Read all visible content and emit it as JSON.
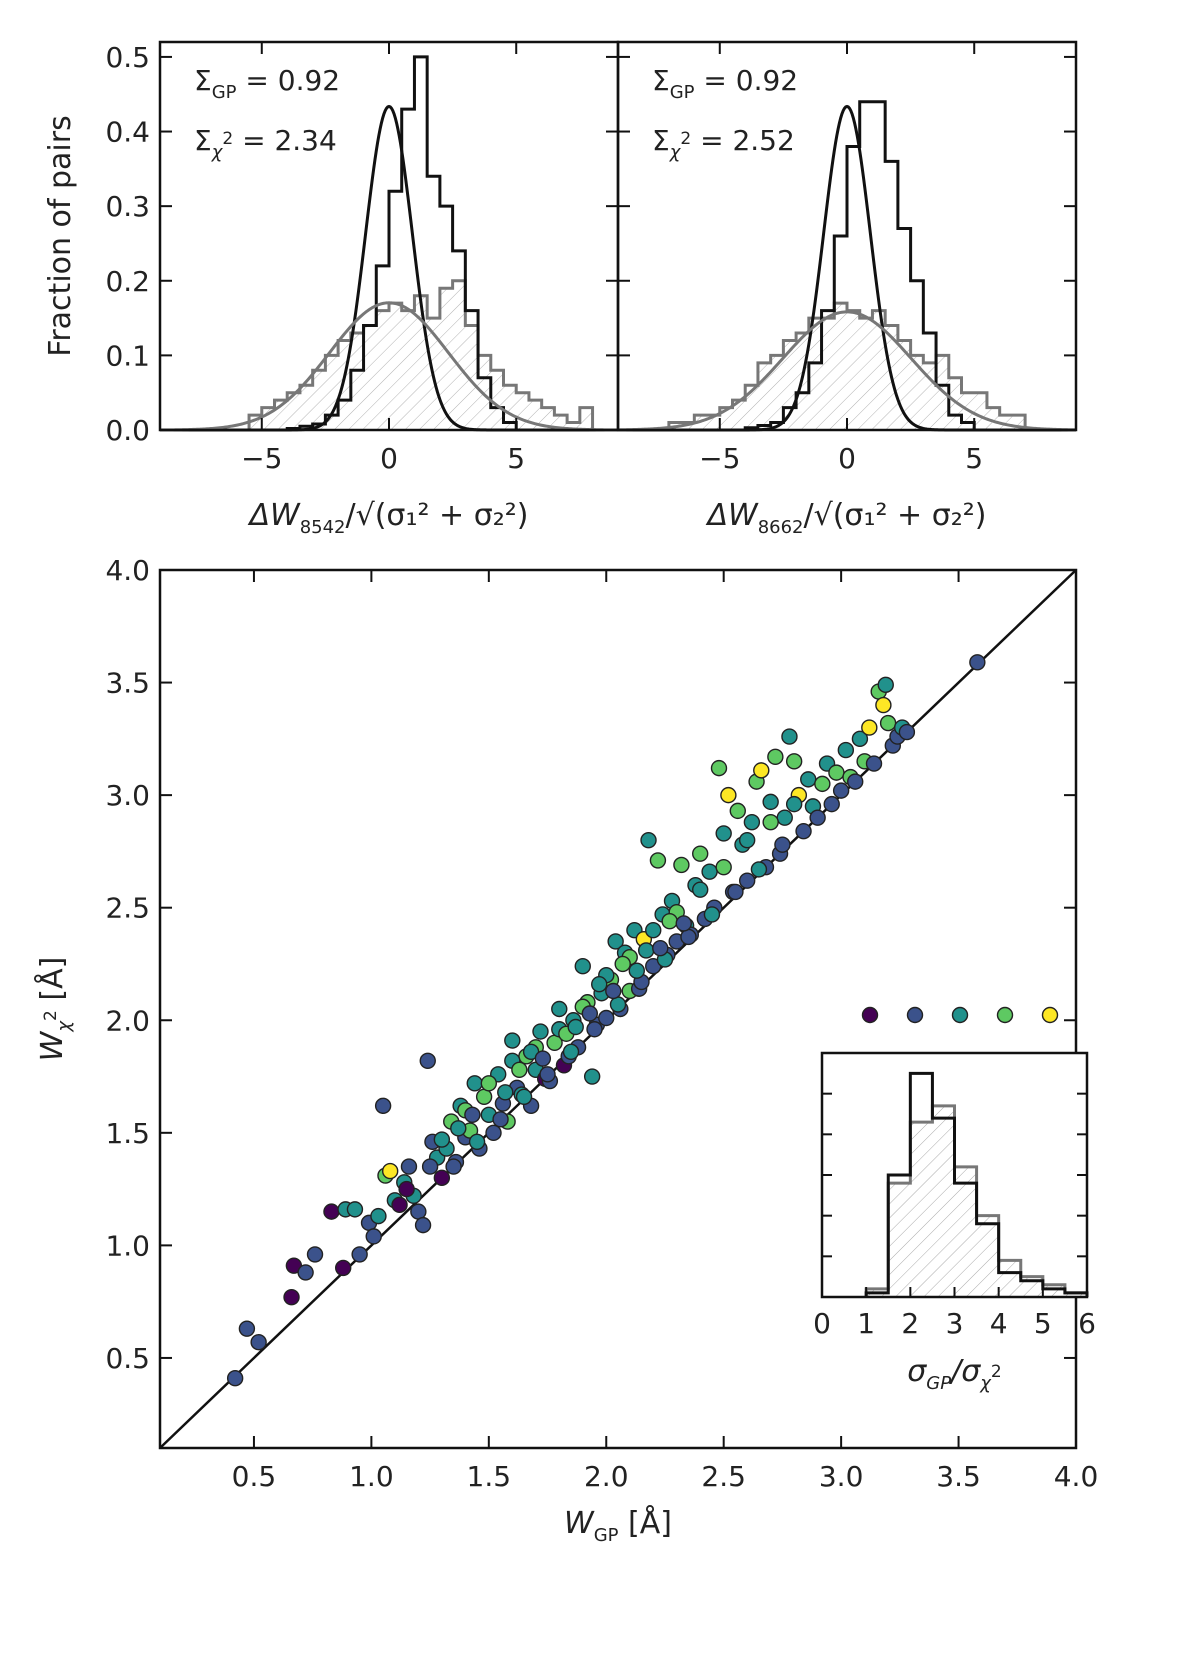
{
  "chart_data": [
    {
      "type": "histogram",
      "panel": "top-left",
      "ylabel": "Fraction of pairs",
      "xlabel_main": "ΔW",
      "xlabel_sub": "8542",
      "xlabel_tail": "/√(σ₁² + σ₂²)",
      "xlim": [
        -9,
        9
      ],
      "ylim": [
        0,
        0.52
      ],
      "xticks": [
        "−5",
        "0",
        "5"
      ],
      "yticks": [
        "0.0",
        "0.1",
        "0.2",
        "0.3",
        "0.4",
        "0.5"
      ],
      "annotations": [
        {
          "sym": "Σ",
          "sub": "GP",
          "sup": "",
          "text": " = 0.92"
        },
        {
          "sym": "Σ",
          "sub": "χ",
          "sup": "2",
          "text": " = 2.34"
        }
      ],
      "bin_width": 0.5,
      "series": [
        {
          "name": "GP",
          "color": "#111111",
          "bin_start": -4.0,
          "sigma": 0.92,
          "values": [
            0.002,
            0.005,
            0.008,
            0.02,
            0.04,
            0.08,
            0.14,
            0.22,
            0.32,
            0.43,
            0.5,
            0.34,
            0.3,
            0.24,
            0.16,
            0.07,
            0.03,
            0.01
          ]
        },
        {
          "name": "χ²",
          "color": "#777777",
          "bin_start": -5.5,
          "sigma": 2.34,
          "values": [
            0.02,
            0.03,
            0.04,
            0.05,
            0.06,
            0.08,
            0.1,
            0.12,
            0.13,
            0.14,
            0.16,
            0.17,
            0.16,
            0.18,
            0.15,
            0.19,
            0.2,
            0.14,
            0.1,
            0.08,
            0.06,
            0.05,
            0.04,
            0.03,
            0.02,
            0.01,
            0.03
          ]
        }
      ]
    },
    {
      "type": "histogram",
      "panel": "top-right",
      "xlabel_main": "ΔW",
      "xlabel_sub": "8662",
      "xlabel_tail": "/√(σ₁² + σ₂²)",
      "xlim": [
        -9,
        9
      ],
      "ylim": [
        0,
        0.52
      ],
      "xticks": [
        "−5",
        "0",
        "5"
      ],
      "annotations": [
        {
          "sym": "Σ",
          "sub": "GP",
          "sup": "",
          "text": " = 0.92"
        },
        {
          "sym": "Σ",
          "sub": "χ",
          "sup": "2",
          "text": " = 2.52"
        }
      ],
      "bin_width": 0.5,
      "series": [
        {
          "name": "GP",
          "color": "#111111",
          "bin_start": -4.0,
          "sigma": 0.92,
          "values": [
            0.003,
            0.006,
            0.01,
            0.03,
            0.05,
            0.09,
            0.16,
            0.26,
            0.38,
            0.44,
            0.44,
            0.36,
            0.27,
            0.2,
            0.13,
            0.06,
            0.02,
            0.01
          ]
        },
        {
          "name": "χ²",
          "color": "#777777",
          "bin_start": -7.0,
          "sigma": 2.52,
          "values": [
            0.01,
            0.01,
            0.02,
            0.02,
            0.03,
            0.04,
            0.06,
            0.09,
            0.1,
            0.12,
            0.13,
            0.15,
            0.15,
            0.17,
            0.16,
            0.15,
            0.16,
            0.14,
            0.12,
            0.1,
            0.09,
            0.1,
            0.07,
            0.05,
            0.05,
            0.03,
            0.02,
            0.02
          ]
        }
      ]
    },
    {
      "type": "scatter",
      "panel": "bottom",
      "xlabel_main": "W",
      "xlabel_sub": "GP",
      "xlabel_tail": " [Å]",
      "ylabel_main": "W",
      "ylabel_sub": "χ",
      "ylabel_sup": "2",
      "ylabel_tail": " [Å]",
      "xlim": [
        0.1,
        4.0
      ],
      "ylim": [
        0.1,
        4.0
      ],
      "xticks": [
        "0.5",
        "1.0",
        "1.5",
        "2.0",
        "2.5",
        "3.0",
        "3.5",
        "4.0"
      ],
      "yticks": [
        "0.5",
        "1.0",
        "1.5",
        "2.0",
        "2.5",
        "3.0",
        "3.5",
        "4.0"
      ],
      "one_to_one_line": true,
      "colormap": [
        "#440154",
        "#3b528b",
        "#21918c",
        "#5ec962",
        "#fde725"
      ],
      "points": [
        [
          0.42,
          0.41,
          1
        ],
        [
          0.47,
          0.63,
          1
        ],
        [
          0.52,
          0.57,
          1
        ],
        [
          0.66,
          0.77,
          0
        ],
        [
          0.67,
          0.91,
          0
        ],
        [
          0.72,
          0.88,
          1
        ],
        [
          0.76,
          0.96,
          1
        ],
        [
          0.83,
          1.15,
          0
        ],
        [
          0.88,
          0.9,
          0
        ],
        [
          0.89,
          1.16,
          2
        ],
        [
          0.93,
          1.16,
          2
        ],
        [
          0.95,
          0.96,
          1
        ],
        [
          0.99,
          1.1,
          1
        ],
        [
          1.01,
          1.04,
          1
        ],
        [
          1.03,
          1.13,
          2
        ],
        [
          1.05,
          1.62,
          1
        ],
        [
          1.06,
          1.31,
          3
        ],
        [
          1.08,
          1.33,
          4
        ],
        [
          1.1,
          1.2,
          2
        ],
        [
          1.12,
          1.18,
          0
        ],
        [
          1.14,
          1.28,
          2
        ],
        [
          1.16,
          1.35,
          1
        ],
        [
          1.18,
          1.22,
          2
        ],
        [
          1.2,
          1.15,
          1
        ],
        [
          1.22,
          1.09,
          1
        ],
        [
          1.24,
          1.82,
          1
        ],
        [
          1.26,
          1.46,
          1
        ],
        [
          1.28,
          1.39,
          2
        ],
        [
          1.3,
          1.3,
          0
        ],
        [
          1.32,
          1.43,
          2
        ],
        [
          1.34,
          1.55,
          3
        ],
        [
          1.36,
          1.37,
          1
        ],
        [
          1.38,
          1.62,
          2
        ],
        [
          1.4,
          1.48,
          1
        ],
        [
          1.42,
          1.51,
          3
        ],
        [
          1.44,
          1.72,
          2
        ],
        [
          1.46,
          1.43,
          1
        ],
        [
          1.48,
          1.66,
          3
        ],
        [
          1.5,
          1.58,
          2
        ],
        [
          1.52,
          1.5,
          1
        ],
        [
          1.54,
          1.76,
          2
        ],
        [
          1.56,
          1.63,
          1
        ],
        [
          1.58,
          1.55,
          3
        ],
        [
          1.6,
          1.91,
          2
        ],
        [
          1.62,
          1.7,
          1
        ],
        [
          1.64,
          1.67,
          2
        ],
        [
          1.66,
          1.84,
          3
        ],
        [
          1.68,
          1.62,
          1
        ],
        [
          1.7,
          1.78,
          2
        ],
        [
          1.72,
          1.95,
          2
        ],
        [
          1.74,
          1.74,
          0
        ],
        [
          1.76,
          1.73,
          1
        ],
        [
          1.78,
          1.9,
          3
        ],
        [
          1.8,
          2.05,
          2
        ],
        [
          1.82,
          1.8,
          0
        ],
        [
          1.84,
          1.84,
          1
        ],
        [
          1.86,
          2.0,
          2
        ],
        [
          1.88,
          1.88,
          1
        ],
        [
          1.9,
          2.24,
          2
        ],
        [
          1.92,
          2.08,
          3
        ],
        [
          1.94,
          1.75,
          2
        ],
        [
          1.96,
          1.98,
          1
        ],
        [
          1.98,
          2.12,
          2
        ],
        [
          2.0,
          2.01,
          1
        ],
        [
          2.02,
          2.18,
          3
        ],
        [
          2.04,
          2.35,
          2
        ],
        [
          2.06,
          2.05,
          1
        ],
        [
          2.08,
          2.3,
          2
        ],
        [
          2.1,
          2.13,
          3
        ],
        [
          2.12,
          2.4,
          2
        ],
        [
          2.14,
          2.14,
          1
        ],
        [
          2.16,
          2.36,
          4
        ],
        [
          2.18,
          2.8,
          2
        ],
        [
          2.2,
          2.24,
          1
        ],
        [
          2.22,
          2.71,
          3
        ],
        [
          2.24,
          2.47,
          2
        ],
        [
          2.26,
          2.29,
          1
        ],
        [
          2.28,
          2.53,
          2
        ],
        [
          2.3,
          2.35,
          1
        ],
        [
          2.32,
          2.69,
          3
        ],
        [
          2.34,
          2.42,
          2
        ],
        [
          2.36,
          2.38,
          1
        ],
        [
          2.38,
          2.6,
          2
        ],
        [
          2.4,
          2.74,
          3
        ],
        [
          2.42,
          2.45,
          1
        ],
        [
          2.44,
          2.66,
          2
        ],
        [
          2.46,
          2.5,
          1
        ],
        [
          2.48,
          3.12,
          3
        ],
        [
          2.5,
          2.83,
          2
        ],
        [
          2.52,
          3.0,
          4
        ],
        [
          2.54,
          2.57,
          1
        ],
        [
          2.56,
          2.93,
          3
        ],
        [
          2.58,
          2.78,
          2
        ],
        [
          2.6,
          2.62,
          1
        ],
        [
          2.62,
          2.88,
          2
        ],
        [
          2.64,
          3.06,
          3
        ],
        [
          2.66,
          3.11,
          4
        ],
        [
          2.68,
          2.68,
          1
        ],
        [
          2.7,
          2.97,
          2
        ],
        [
          2.72,
          3.17,
          3
        ],
        [
          2.74,
          2.74,
          1
        ],
        [
          2.76,
          2.9,
          2
        ],
        [
          2.78,
          3.26,
          2
        ],
        [
          2.8,
          3.15,
          3
        ],
        [
          2.82,
          3.0,
          4
        ],
        [
          2.84,
          2.84,
          1
        ],
        [
          2.86,
          3.07,
          2
        ],
        [
          2.88,
          2.95,
          2
        ],
        [
          2.9,
          2.9,
          1
        ],
        [
          2.92,
          3.05,
          3
        ],
        [
          2.94,
          3.14,
          2
        ],
        [
          2.96,
          2.96,
          1
        ],
        [
          2.98,
          3.1,
          3
        ],
        [
          3.0,
          3.02,
          1
        ],
        [
          3.02,
          3.2,
          2
        ],
        [
          3.04,
          3.08,
          3
        ],
        [
          3.06,
          3.06,
          1
        ],
        [
          3.08,
          3.25,
          2
        ],
        [
          3.1,
          3.15,
          3
        ],
        [
          3.12,
          3.3,
          4
        ],
        [
          3.14,
          3.14,
          1
        ],
        [
          3.16,
          3.46,
          3
        ],
        [
          3.18,
          3.4,
          4
        ],
        [
          3.19,
          3.49,
          2
        ],
        [
          3.2,
          3.32,
          3
        ],
        [
          3.22,
          3.22,
          1
        ],
        [
          3.24,
          3.26,
          1
        ],
        [
          3.26,
          3.3,
          2
        ],
        [
          3.28,
          3.28,
          1
        ],
        [
          3.58,
          3.59,
          1
        ],
        [
          1.35,
          1.35,
          1
        ],
        [
          1.45,
          1.46,
          2
        ],
        [
          1.55,
          1.56,
          1
        ],
        [
          1.65,
          1.66,
          2
        ],
        [
          1.75,
          1.76,
          1
        ],
        [
          1.85,
          1.86,
          2
        ],
        [
          1.95,
          1.96,
          1
        ],
        [
          2.05,
          2.07,
          2
        ],
        [
          2.15,
          2.17,
          1
        ],
        [
          2.25,
          2.27,
          2
        ],
        [
          2.35,
          2.37,
          1
        ],
        [
          2.45,
          2.47,
          2
        ],
        [
          2.55,
          2.57,
          1
        ],
        [
          2.65,
          2.67,
          2
        ],
        [
          2.75,
          2.78,
          1
        ],
        [
          1.4,
          1.6,
          3
        ],
        [
          1.5,
          1.72,
          3
        ],
        [
          1.6,
          1.82,
          2
        ],
        [
          1.7,
          1.88,
          3
        ],
        [
          1.8,
          1.96,
          2
        ],
        [
          1.9,
          2.06,
          3
        ],
        [
          2.0,
          2.2,
          2
        ],
        [
          2.1,
          2.28,
          3
        ],
        [
          2.2,
          2.4,
          2
        ],
        [
          2.3,
          2.48,
          3
        ],
        [
          2.4,
          2.58,
          2
        ],
        [
          2.5,
          2.68,
          3
        ],
        [
          2.6,
          2.8,
          2
        ],
        [
          2.7,
          2.88,
          3
        ],
        [
          2.8,
          2.96,
          2
        ],
        [
          1.15,
          1.25,
          0
        ],
        [
          1.25,
          1.35,
          1
        ],
        [
          1.3,
          1.47,
          2
        ],
        [
          1.37,
          1.52,
          2
        ],
        [
          1.43,
          1.58,
          1
        ],
        [
          1.57,
          1.68,
          2
        ],
        [
          1.63,
          1.78,
          3
        ],
        [
          1.68,
          1.86,
          2
        ],
        [
          1.73,
          1.83,
          1
        ],
        [
          1.83,
          1.94,
          3
        ],
        [
          1.87,
          1.97,
          2
        ],
        [
          1.93,
          2.03,
          1
        ],
        [
          1.97,
          2.16,
          2
        ],
        [
          2.03,
          2.13,
          1
        ],
        [
          2.07,
          2.25,
          3
        ],
        [
          2.13,
          2.22,
          2
        ],
        [
          2.17,
          2.31,
          2
        ],
        [
          2.23,
          2.32,
          1
        ],
        [
          2.27,
          2.44,
          3
        ],
        [
          2.33,
          2.43,
          1
        ]
      ]
    },
    {
      "type": "histogram",
      "panel": "bottom-inset",
      "xlabel": "σGP/σχ²",
      "xlim": [
        0,
        6
      ],
      "xticks": [
        "0",
        "1",
        "2",
        "3",
        "4",
        "5",
        "6"
      ],
      "color_key_points": 5,
      "bin_width": 0.5,
      "series": [
        {
          "name": "8542",
          "color": "#111111",
          "bin_start": 1.0,
          "values": [
            0.01,
            0.3,
            0.55,
            0.44,
            0.28,
            0.18,
            0.06,
            0.04,
            0.02,
            0.01
          ]
        },
        {
          "name": "8662",
          "color": "#777777",
          "bin_start": 1.0,
          "values": [
            0.02,
            0.28,
            0.43,
            0.47,
            0.32,
            0.2,
            0.09,
            0.05,
            0.03,
            0.01
          ]
        }
      ]
    }
  ]
}
